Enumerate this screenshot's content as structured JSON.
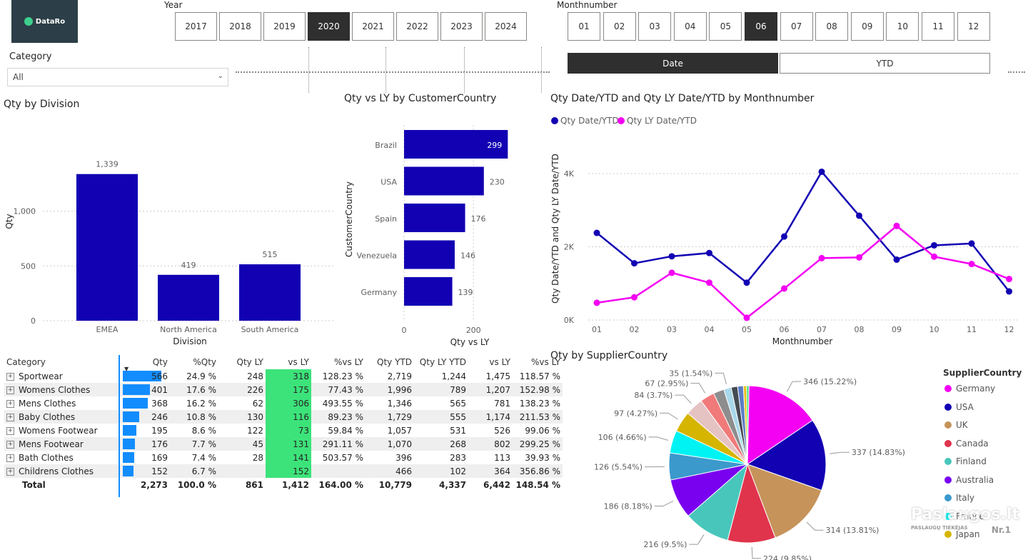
{
  "logo": {
    "text": "DataRo"
  },
  "year_slicer": {
    "title": "Year",
    "options": [
      "2017",
      "2018",
      "2019",
      "2020",
      "2021",
      "2022",
      "2023",
      "2024"
    ],
    "selected": "2020"
  },
  "month_slicer": {
    "title": "Monthnumber",
    "options": [
      "01",
      "02",
      "03",
      "04",
      "05",
      "06",
      "07",
      "08",
      "09",
      "10",
      "11",
      "12"
    ],
    "selected": "06"
  },
  "date_toggle": {
    "options": [
      "Date",
      "YTD"
    ],
    "selected": "Date"
  },
  "category_slicer": {
    "title": "Category",
    "value": "All"
  },
  "qty_by_division": {
    "title": "Qty by Division",
    "chart_data": {
      "type": "bar",
      "categories": [
        "EMEA",
        "North America",
        "South America"
      ],
      "values": [
        1339,
        419,
        515
      ],
      "value_labels": [
        "1,339",
        "419",
        "515"
      ],
      "xlabel": "Division",
      "ylabel": "Qty",
      "ylim": [
        0,
        1500
      ],
      "yticks": [
        "0",
        "500",
        "1,000"
      ],
      "color": "#1200b3"
    }
  },
  "qty_vs_ly": {
    "title": "Qty vs LY by CustomerCountry",
    "chart_data": {
      "type": "bar",
      "orientation": "horizontal",
      "categories": [
        "Brazil",
        "USA",
        "Spain",
        "Venezuela",
        "Germany"
      ],
      "values": [
        299,
        230,
        176,
        146,
        139
      ],
      "xlabel": "Qty vs LY",
      "ylabel": "CustomerCountry",
      "xlim": [
        0,
        300
      ],
      "xticks": [
        "0",
        "200"
      ],
      "color": "#1200b3"
    }
  },
  "line_chart": {
    "title": "Qty Date/YTD and Qty LY Date/YTD by Monthnumber",
    "chart_data": {
      "type": "line",
      "x": [
        "01",
        "02",
        "03",
        "04",
        "05",
        "06",
        "07",
        "08",
        "09",
        "10",
        "11",
        "12"
      ],
      "series": [
        {
          "name": "Qty Date/YTD",
          "color": "#1200b3",
          "values": [
            2380,
            1550,
            1740,
            1830,
            1020,
            2280,
            4050,
            2850,
            1650,
            2040,
            2090,
            780
          ]
        },
        {
          "name": "Qty LY Date/YTD",
          "color": "#f400f3",
          "values": [
            470,
            620,
            1290,
            1020,
            60,
            860,
            1690,
            1710,
            2570,
            1730,
            1530,
            1120
          ]
        }
      ],
      "xlabel": "Monthnumber",
      "ylabel": "Qty Date/YTD and Qty LY Date/YTD",
      "ylim": [
        0,
        4300
      ],
      "yticks": [
        "0K",
        "2K",
        "4K"
      ]
    }
  },
  "matrix": {
    "headers": [
      "Category",
      "Qty",
      "%Qty",
      "Qty LY",
      "vs LY",
      "%vs LY",
      "Qty YTD",
      "Qty LY YTD",
      "vs LY",
      "%vs LY"
    ],
    "rows": [
      {
        "category": "Sportwear",
        "qty": "566",
        "pct": "24.9 %",
        "qty_ly": "248",
        "vs_ly": "318",
        "pct_vs_ly": "128.23 %",
        "ytd": "2,719",
        "ly_ytd": "1,244",
        "vs_ly_ytd": "1,475",
        "pct_vs_ly_ytd": "118.57 %",
        "bar": 566,
        "green": true
      },
      {
        "category": "Womens Clothes",
        "qty": "401",
        "pct": "17.6 %",
        "qty_ly": "226",
        "vs_ly": "175",
        "pct_vs_ly": "77.43 %",
        "ytd": "1,996",
        "ly_ytd": "789",
        "vs_ly_ytd": "1,207",
        "pct_vs_ly_ytd": "152.98 %",
        "bar": 401,
        "green": true
      },
      {
        "category": "Mens Clothes",
        "qty": "368",
        "pct": "16.2 %",
        "qty_ly": "62",
        "vs_ly": "306",
        "pct_vs_ly": "493.55 %",
        "ytd": "1,346",
        "ly_ytd": "565",
        "vs_ly_ytd": "781",
        "pct_vs_ly_ytd": "138.23 %",
        "bar": 368,
        "green": true
      },
      {
        "category": "Baby Clothes",
        "qty": "246",
        "pct": "10.8 %",
        "qty_ly": "130",
        "vs_ly": "116",
        "pct_vs_ly": "89.23 %",
        "ytd": "1,729",
        "ly_ytd": "555",
        "vs_ly_ytd": "1,174",
        "pct_vs_ly_ytd": "211.53 %",
        "bar": 246,
        "green": true
      },
      {
        "category": "Womens Footwear",
        "qty": "195",
        "pct": "8.6 %",
        "qty_ly": "122",
        "vs_ly": "73",
        "pct_vs_ly": "59.84 %",
        "ytd": "1,057",
        "ly_ytd": "531",
        "vs_ly_ytd": "526",
        "pct_vs_ly_ytd": "99.06 %",
        "bar": 195,
        "green": true
      },
      {
        "category": "Mens Footwear",
        "qty": "176",
        "pct": "7.7 %",
        "qty_ly": "45",
        "vs_ly": "131",
        "pct_vs_ly": "291.11 %",
        "ytd": "1,070",
        "ly_ytd": "268",
        "vs_ly_ytd": "802",
        "pct_vs_ly_ytd": "299.25 %",
        "bar": 176,
        "green": true
      },
      {
        "category": "Bath Clothes",
        "qty": "169",
        "pct": "7.4 %",
        "qty_ly": "28",
        "vs_ly": "141",
        "pct_vs_ly": "503.57 %",
        "ytd": "396",
        "ly_ytd": "283",
        "vs_ly_ytd": "113",
        "pct_vs_ly_ytd": "39.93 %",
        "bar": 169,
        "green": true
      },
      {
        "category": "Childrens Clothes",
        "qty": "152",
        "pct": "6.7 %",
        "qty_ly": "",
        "vs_ly": "152",
        "pct_vs_ly": "",
        "ytd": "466",
        "ly_ytd": "102",
        "vs_ly_ytd": "364",
        "pct_vs_ly_ytd": "356.86 %",
        "bar": 152,
        "green": true
      }
    ],
    "total": {
      "category": "Total",
      "qty": "2,273",
      "pct": "100.0 %",
      "qty_ly": "861",
      "vs_ly": "1,412",
      "pct_vs_ly": "164.00 %",
      "ytd": "10,779",
      "ly_ytd": "4,337",
      "vs_ly_ytd": "6,442",
      "pct_vs_ly_ytd": "148.54 %"
    }
  },
  "pie": {
    "title": "Qty by SupplierCountry",
    "legend_title": "SupplierCountry",
    "chart_data": {
      "type": "pie",
      "slices": [
        {
          "name": "Germany",
          "value": 346,
          "label": "346 (15.22%)",
          "color": "#f400f3"
        },
        {
          "name": "USA",
          "value": 337,
          "label": "337 (14.83%)",
          "color": "#1200b3"
        },
        {
          "name": "UK",
          "value": 314,
          "label": "314 (13.81%)",
          "color": "#c6945a"
        },
        {
          "name": "Canada",
          "value": 224,
          "label": "224 (9.85%)",
          "color": "#e0344d"
        },
        {
          "name": "Finland",
          "value": 216,
          "label": "216 (9.5%)",
          "color": "#48c6bb"
        },
        {
          "name": "Australia",
          "value": 186,
          "label": "186 (8.18%)",
          "color": "#7a00f0"
        },
        {
          "name": "Italy",
          "value": 126,
          "label": "126 (5.54%)",
          "color": "#3b99cc"
        },
        {
          "name": "France",
          "value": 106,
          "label": "106 (4.66%)",
          "color": "#00f3f3"
        },
        {
          "name": "Japan",
          "value": 97,
          "label": "97 (4.27%)",
          "color": "#d6b500"
        },
        {
          "name": "",
          "value": 84,
          "label": "84 (3.7%)",
          "color": "#e6c3c3"
        },
        {
          "name": "",
          "value": 67,
          "label": "67 (2.95%)",
          "color": "#f07a7a"
        },
        {
          "name": "",
          "value": 50,
          "label": "",
          "color": "#8d8d8d"
        },
        {
          "name": "",
          "value": 35,
          "label": "35 (1.54%)",
          "color": "#a8d8ea"
        },
        {
          "name": "",
          "value": 30,
          "label": "",
          "color": "#444b52"
        },
        {
          "name": "",
          "value": 27,
          "label": "",
          "color": "#5a7dc6"
        },
        {
          "name": "",
          "value": 15,
          "label": "",
          "color": "#e8c020"
        },
        {
          "name": "",
          "value": 11,
          "label": "",
          "color": "#3ce37a"
        }
      ],
      "legend": [
        "Germany",
        "USA",
        "UK",
        "Canada",
        "Finland",
        "Australia",
        "Italy",
        "France",
        "Japan"
      ]
    }
  },
  "watermark": {
    "line1": "Paslaugos.lt",
    "line2": "PASLAUGŲ TIEKĖJAS",
    "badge": "Nr.1"
  }
}
